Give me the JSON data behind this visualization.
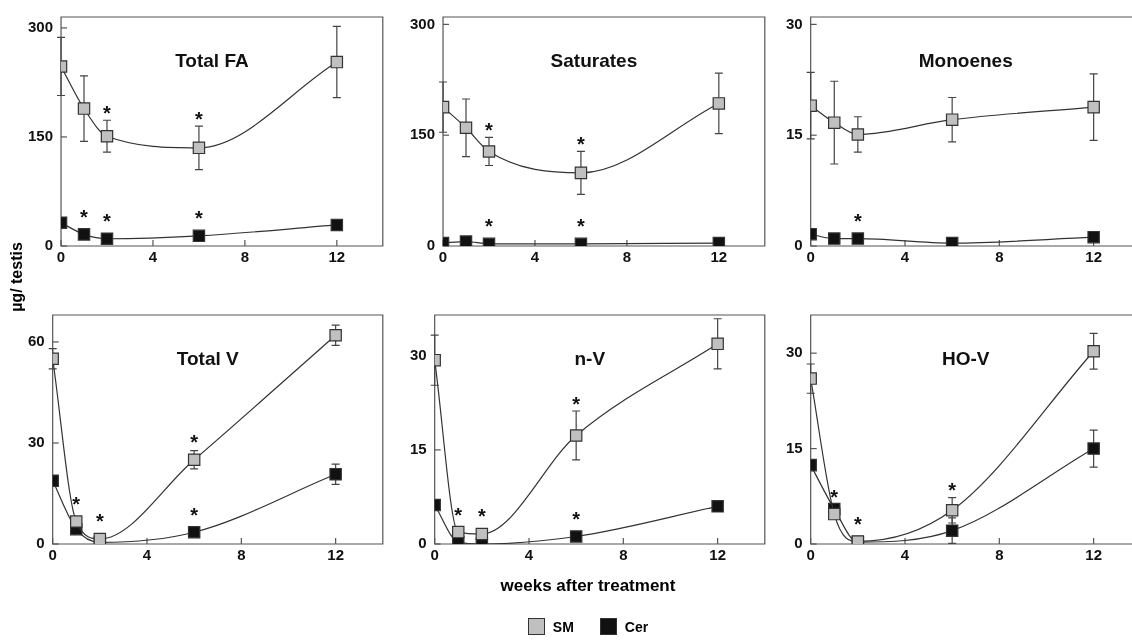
{
  "chart_data": [
    {
      "type": "line",
      "title": "Total FA",
      "x": [
        0,
        1,
        2,
        6,
        12
      ],
      "xlim": [
        0,
        14
      ],
      "xticks": [
        0,
        4,
        8,
        12
      ],
      "ylim": [
        0,
        315
      ],
      "yticks": [
        0,
        150,
        300
      ],
      "marker": "square",
      "grid": false,
      "series": [
        {
          "color": "#c0c0c0",
          "values": [
            247,
            189,
            151,
            135,
            253
          ],
          "errors": [
            40,
            45,
            22,
            30,
            49
          ]
        },
        {
          "color": "#111111",
          "values": [
            32,
            16,
            10,
            14,
            29
          ]
        }
      ],
      "annotations": [
        {
          "text": "*",
          "x": 2,
          "y": 151
        },
        {
          "text": "*",
          "x": 6,
          "y": 135
        },
        {
          "text": "*",
          "x": 1,
          "y": 16
        },
        {
          "text": "*",
          "x": 2,
          "y": 10
        },
        {
          "text": "*",
          "x": 6,
          "y": 14
        }
      ]
    },
    {
      "type": "line",
      "title": "Saturates",
      "x": [
        0,
        1,
        2,
        6,
        12
      ],
      "xlim": [
        0,
        14
      ],
      "xticks": [
        0,
        4,
        8,
        12
      ],
      "ylim": [
        0,
        310
      ],
      "yticks": [
        0,
        150,
        300
      ],
      "marker": "square",
      "grid": false,
      "series": [
        {
          "color": "#c0c0c0",
          "values": [
            188,
            160,
            128,
            99,
            193
          ],
          "errors": [
            34,
            39,
            19,
            29,
            41
          ]
        },
        {
          "color": "#111111",
          "values": [
            4,
            6,
            3,
            3,
            4
          ]
        }
      ],
      "annotations": [
        {
          "text": "*",
          "x": 2,
          "y": 128
        },
        {
          "text": "*",
          "x": 6,
          "y": 99
        },
        {
          "text": "*",
          "x": 2,
          "y": 3
        },
        {
          "text": "*",
          "x": 6,
          "y": 3
        }
      ]
    },
    {
      "type": "line",
      "title": "Monoenes",
      "x": [
        0,
        1,
        2,
        6,
        12
      ],
      "xlim": [
        0,
        14
      ],
      "xticks": [
        0,
        4,
        8,
        12
      ],
      "ylim": [
        0,
        31
      ],
      "yticks": [
        0,
        15,
        30
      ],
      "marker": "square",
      "grid": false,
      "series": [
        {
          "color": "#c0c0c0",
          "values": [
            19,
            16.7,
            15.1,
            17.1,
            18.8
          ],
          "errors": [
            4.5,
            5.6,
            2.4,
            3,
            4.5
          ]
        },
        {
          "color": "#111111",
          "values": [
            1.6,
            1,
            1,
            0.4,
            1.2
          ]
        }
      ],
      "annotations": [
        {
          "text": "*",
          "x": 2,
          "y": 1
        }
      ]
    },
    {
      "type": "line",
      "title": "Total V",
      "ylabel": "µg/ testis",
      "x": [
        0,
        1,
        2,
        6,
        12
      ],
      "xlim": [
        0,
        14
      ],
      "xticks": [
        0,
        4,
        8,
        12
      ],
      "ylim": [
        0,
        68
      ],
      "yticks": [
        0,
        30,
        60
      ],
      "marker": "square",
      "grid": false,
      "series": [
        {
          "color": "#c0c0c0",
          "values": [
            55,
            6.7,
            1.5,
            25,
            62
          ],
          "errors": [
            3,
            null,
            null,
            2.7,
            3
          ]
        },
        {
          "color": "#111111",
          "values": [
            18.8,
            4.4,
            0.5,
            3.5,
            20.7
          ],
          "errors": [
            null,
            null,
            null,
            null,
            3
          ]
        }
      ],
      "annotations": [
        {
          "text": "*",
          "x": 1,
          "y": 6.7
        },
        {
          "text": "*",
          "x": 2,
          "y": 1.5
        },
        {
          "text": "*",
          "x": 6,
          "y": 25
        },
        {
          "text": "*",
          "x": 6,
          "y": 3.5
        }
      ]
    },
    {
      "type": "line",
      "title": "n-V",
      "xlabel": "weeks after treatment",
      "legend": "bottom",
      "x": [
        0,
        1,
        2,
        6,
        12
      ],
      "xlim": [
        0,
        14
      ],
      "xticks": [
        0,
        4,
        8,
        12
      ],
      "ylim": [
        0,
        36.5
      ],
      "yticks": [
        0,
        15,
        30
      ],
      "marker": "square",
      "grid": false,
      "series": [
        {
          "name": "SM",
          "color": "#c0c0c0",
          "values": [
            29.3,
            1.9,
            1.6,
            17.3,
            31.9
          ],
          "errors": [
            4,
            null,
            null,
            3.9,
            4
          ]
        },
        {
          "name": "Cer",
          "color": "#111111",
          "values": [
            6.2,
            0.3,
            0,
            1.2,
            6
          ]
        }
      ],
      "annotations": [
        {
          "text": "*",
          "x": 1,
          "y": 1.9
        },
        {
          "text": "*",
          "x": 2,
          "y": 1.6
        },
        {
          "text": "*",
          "x": 6,
          "y": 17.3
        },
        {
          "text": "*",
          "x": 6,
          "y": 1.2
        }
      ]
    },
    {
      "type": "line",
      "title": "HO-V",
      "x": [
        0,
        1,
        2,
        6,
        12
      ],
      "xlim": [
        0,
        14
      ],
      "xticks": [
        0,
        4,
        8,
        12
      ],
      "ylim": [
        0,
        36
      ],
      "yticks": [
        0,
        15,
        30
      ],
      "marker": "square",
      "grid": false,
      "series": [
        {
          "color": "#c0c0c0",
          "values": [
            26,
            4.7,
            0.4,
            5.3,
            30.3
          ],
          "errors": [
            2.3,
            null,
            null,
            2,
            2.8
          ]
        },
        {
          "color": "#111111",
          "values": [
            12.4,
            5.5,
            0.3,
            2.1,
            15
          ],
          "errors": [
            null,
            null,
            null,
            2,
            2.9
          ]
        }
      ],
      "annotations": [
        {
          "text": "*",
          "x": 1,
          "y": 4.7
        },
        {
          "text": "*",
          "x": 2,
          "y": 0.4
        },
        {
          "text": "*",
          "x": 6,
          "y": 5.3
        }
      ]
    }
  ]
}
